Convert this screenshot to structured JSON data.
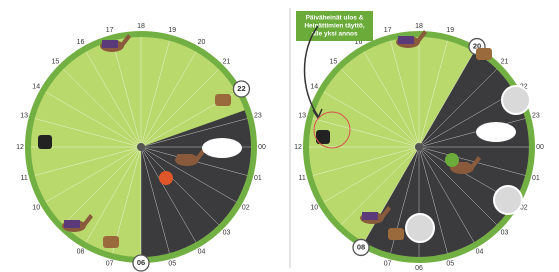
{
  "left_dial": {
    "hours": [
      "00",
      "01",
      "02",
      "03",
      "04",
      "05",
      null,
      "07",
      "08",
      null,
      "10",
      "11",
      "12",
      "13",
      "14",
      "15",
      "16",
      "17",
      "18",
      "19",
      "20",
      "21",
      null,
      "23"
    ],
    "marked_hours": [
      "22",
      "06"
    ]
  },
  "right_dial": {
    "hours": [
      "00",
      "01",
      "02",
      "03",
      "04",
      "05",
      "06",
      "07",
      null,
      null,
      "10",
      "11",
      "12",
      "13",
      "14",
      "15",
      "16",
      "17",
      "18",
      "19",
      null,
      "21",
      "22",
      "23"
    ],
    "marked_hours": [
      "20",
      "08"
    ]
  },
  "note": {
    "lines": [
      "Päiväheinät ulos &",
      "Heinättimien täyttö,",
      "alle yksi annos"
    ]
  }
}
